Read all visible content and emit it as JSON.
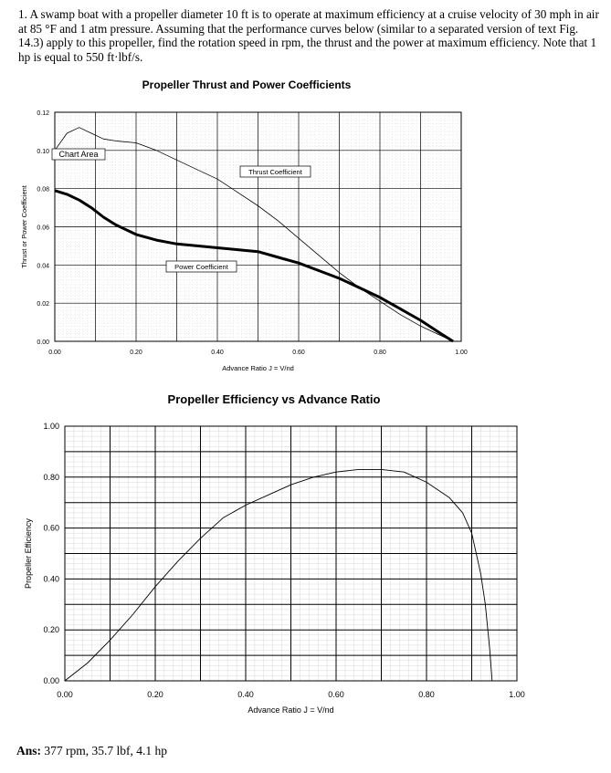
{
  "problem": {
    "text": "1.  A swamp boat with a propeller diameter 10 ft is to operate at maximum efficiency at a cruise velocity of 30 mph in air at 85 °F and 1 atm pressure. Assuming that the performance curves below (similar to a separated version of text Fig. 14.3) apply to this propeller, find the rotation speed in rpm, the thrust and the power at maximum efficiency. Note that 1 hp is equal to 550 ft·lbf/s."
  },
  "answer": {
    "label": "Ans:",
    "text": "377 rpm, 35.7 lbf, 4.1 hp"
  },
  "chart_data": [
    {
      "type": "line",
      "title": "Propeller Thrust and Power Coefficients",
      "xlabel": "Advance Ratio J = V/nd",
      "ylabel": "Thrust or Power Coefficient",
      "xlim": [
        0,
        1.0
      ],
      "ylim": [
        0,
        0.12
      ],
      "xticks": [
        "0.00",
        "0.20",
        "0.40",
        "0.60",
        "0.80",
        "1.00"
      ],
      "yticks": [
        "0.00",
        "0.02",
        "0.04",
        "0.06",
        "0.08",
        "0.10",
        "0.12"
      ],
      "grid": true,
      "annotation": "Chart Area",
      "series": [
        {
          "name": "Thrust Coefficient",
          "x": [
            0,
            0.03,
            0.06,
            0.09,
            0.12,
            0.15,
            0.2,
            0.25,
            0.3,
            0.35,
            0.4,
            0.45,
            0.5,
            0.55,
            0.6,
            0.65,
            0.7,
            0.75,
            0.8,
            0.85,
            0.9,
            0.95,
            0.98
          ],
          "y": [
            0.1,
            0.109,
            0.112,
            0.109,
            0.106,
            0.105,
            0.104,
            0.1,
            0.095,
            0.09,
            0.085,
            0.078,
            0.071,
            0.063,
            0.054,
            0.045,
            0.036,
            0.028,
            0.021,
            0.014,
            0.008,
            0.003,
            0.0
          ],
          "color": "#000000"
        },
        {
          "name": "Power Coefficient",
          "x": [
            0,
            0.03,
            0.06,
            0.09,
            0.12,
            0.15,
            0.2,
            0.25,
            0.3,
            0.35,
            0.4,
            0.45,
            0.5,
            0.55,
            0.6,
            0.65,
            0.7,
            0.75,
            0.8,
            0.85,
            0.9,
            0.95,
            0.98
          ],
          "y": [
            0.079,
            0.077,
            0.074,
            0.07,
            0.065,
            0.061,
            0.056,
            0.053,
            0.051,
            0.05,
            0.049,
            0.048,
            0.047,
            0.044,
            0.041,
            0.037,
            0.033,
            0.028,
            0.023,
            0.017,
            0.011,
            0.004,
            0.0
          ],
          "color": "#000000"
        }
      ]
    },
    {
      "type": "line",
      "title": "Propeller Efficiency vs Advance Ratio",
      "xlabel": "Advance Ratio J = V/nd",
      "ylabel": "Propeller Efficiency",
      "xlim": [
        0,
        1.0
      ],
      "ylim": [
        0,
        1.0
      ],
      "xticks": [
        "0.00",
        "0.20",
        "0.40",
        "0.60",
        "0.80",
        "1.00"
      ],
      "yticks": [
        "0.00",
        "0.20",
        "0.40",
        "0.60",
        "0.80",
        "1.00"
      ],
      "grid": true,
      "series": [
        {
          "x": [
            0,
            0.05,
            0.1,
            0.15,
            0.2,
            0.25,
            0.3,
            0.35,
            0.4,
            0.45,
            0.5,
            0.55,
            0.6,
            0.65,
            0.7,
            0.75,
            0.8,
            0.85,
            0.88,
            0.9,
            0.92,
            0.93,
            0.94,
            0.945
          ],
          "y": [
            0.0,
            0.07,
            0.16,
            0.26,
            0.37,
            0.47,
            0.56,
            0.64,
            0.69,
            0.73,
            0.77,
            0.8,
            0.82,
            0.83,
            0.83,
            0.82,
            0.78,
            0.72,
            0.66,
            0.58,
            0.42,
            0.3,
            0.12,
            0.0
          ],
          "color": "#000000"
        }
      ]
    }
  ]
}
